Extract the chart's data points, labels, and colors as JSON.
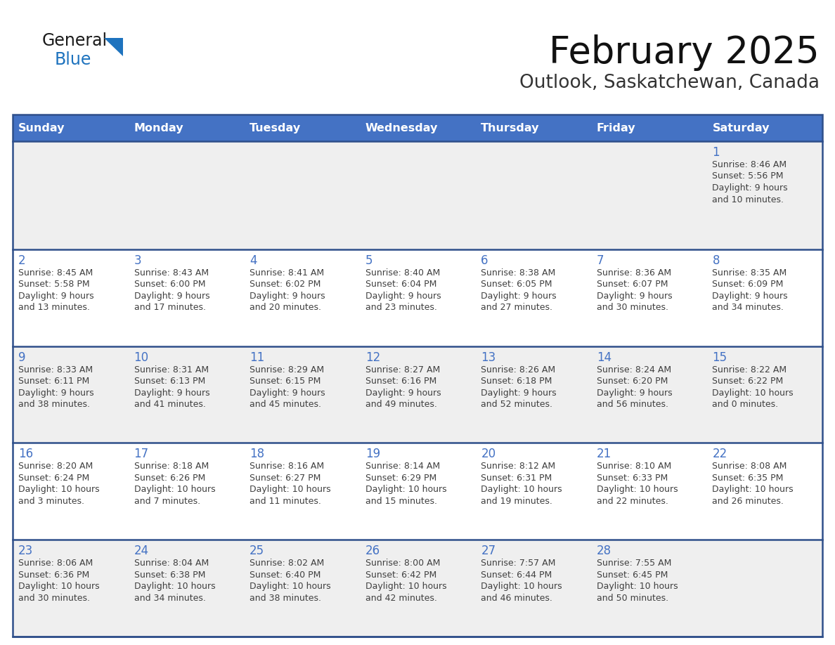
{
  "title": "February 2025",
  "subtitle": "Outlook, Saskatchewan, Canada",
  "header_bg": "#4472C4",
  "header_text": "#FFFFFF",
  "day_names": [
    "Sunday",
    "Monday",
    "Tuesday",
    "Wednesday",
    "Thursday",
    "Friday",
    "Saturday"
  ],
  "row_bg_odd": "#EFEFEF",
  "row_bg_even": "#FFFFFF",
  "cell_border_color": "#2E4F8A",
  "number_color": "#4472C4",
  "text_color": "#404040",
  "calendar_data": [
    [
      null,
      null,
      null,
      null,
      null,
      null,
      {
        "day": 1,
        "sunrise": "8:46 AM",
        "sunset": "5:56 PM",
        "daylight": "9 hours and 10 minutes."
      }
    ],
    [
      {
        "day": 2,
        "sunrise": "8:45 AM",
        "sunset": "5:58 PM",
        "daylight": "9 hours and 13 minutes."
      },
      {
        "day": 3,
        "sunrise": "8:43 AM",
        "sunset": "6:00 PM",
        "daylight": "9 hours and 17 minutes."
      },
      {
        "day": 4,
        "sunrise": "8:41 AM",
        "sunset": "6:02 PM",
        "daylight": "9 hours and 20 minutes."
      },
      {
        "day": 5,
        "sunrise": "8:40 AM",
        "sunset": "6:04 PM",
        "daylight": "9 hours and 23 minutes."
      },
      {
        "day": 6,
        "sunrise": "8:38 AM",
        "sunset": "6:05 PM",
        "daylight": "9 hours and 27 minutes."
      },
      {
        "day": 7,
        "sunrise": "8:36 AM",
        "sunset": "6:07 PM",
        "daylight": "9 hours and 30 minutes."
      },
      {
        "day": 8,
        "sunrise": "8:35 AM",
        "sunset": "6:09 PM",
        "daylight": "9 hours and 34 minutes."
      }
    ],
    [
      {
        "day": 9,
        "sunrise": "8:33 AM",
        "sunset": "6:11 PM",
        "daylight": "9 hours and 38 minutes."
      },
      {
        "day": 10,
        "sunrise": "8:31 AM",
        "sunset": "6:13 PM",
        "daylight": "9 hours and 41 minutes."
      },
      {
        "day": 11,
        "sunrise": "8:29 AM",
        "sunset": "6:15 PM",
        "daylight": "9 hours and 45 minutes."
      },
      {
        "day": 12,
        "sunrise": "8:27 AM",
        "sunset": "6:16 PM",
        "daylight": "9 hours and 49 minutes."
      },
      {
        "day": 13,
        "sunrise": "8:26 AM",
        "sunset": "6:18 PM",
        "daylight": "9 hours and 52 minutes."
      },
      {
        "day": 14,
        "sunrise": "8:24 AM",
        "sunset": "6:20 PM",
        "daylight": "9 hours and 56 minutes."
      },
      {
        "day": 15,
        "sunrise": "8:22 AM",
        "sunset": "6:22 PM",
        "daylight": "10 hours and 0 minutes."
      }
    ],
    [
      {
        "day": 16,
        "sunrise": "8:20 AM",
        "sunset": "6:24 PM",
        "daylight": "10 hours and 3 minutes."
      },
      {
        "day": 17,
        "sunrise": "8:18 AM",
        "sunset": "6:26 PM",
        "daylight": "10 hours and 7 minutes."
      },
      {
        "day": 18,
        "sunrise": "8:16 AM",
        "sunset": "6:27 PM",
        "daylight": "10 hours and 11 minutes."
      },
      {
        "day": 19,
        "sunrise": "8:14 AM",
        "sunset": "6:29 PM",
        "daylight": "10 hours and 15 minutes."
      },
      {
        "day": 20,
        "sunrise": "8:12 AM",
        "sunset": "6:31 PM",
        "daylight": "10 hours and 19 minutes."
      },
      {
        "day": 21,
        "sunrise": "8:10 AM",
        "sunset": "6:33 PM",
        "daylight": "10 hours and 22 minutes."
      },
      {
        "day": 22,
        "sunrise": "8:08 AM",
        "sunset": "6:35 PM",
        "daylight": "10 hours and 26 minutes."
      }
    ],
    [
      {
        "day": 23,
        "sunrise": "8:06 AM",
        "sunset": "6:36 PM",
        "daylight": "10 hours and 30 minutes."
      },
      {
        "day": 24,
        "sunrise": "8:04 AM",
        "sunset": "6:38 PM",
        "daylight": "10 hours and 34 minutes."
      },
      {
        "day": 25,
        "sunrise": "8:02 AM",
        "sunset": "6:40 PM",
        "daylight": "10 hours and 38 minutes."
      },
      {
        "day": 26,
        "sunrise": "8:00 AM",
        "sunset": "6:42 PM",
        "daylight": "10 hours and 42 minutes."
      },
      {
        "day": 27,
        "sunrise": "7:57 AM",
        "sunset": "6:44 PM",
        "daylight": "10 hours and 46 minutes."
      },
      {
        "day": 28,
        "sunrise": "7:55 AM",
        "sunset": "6:45 PM",
        "daylight": "10 hours and 50 minutes."
      },
      null
    ]
  ]
}
